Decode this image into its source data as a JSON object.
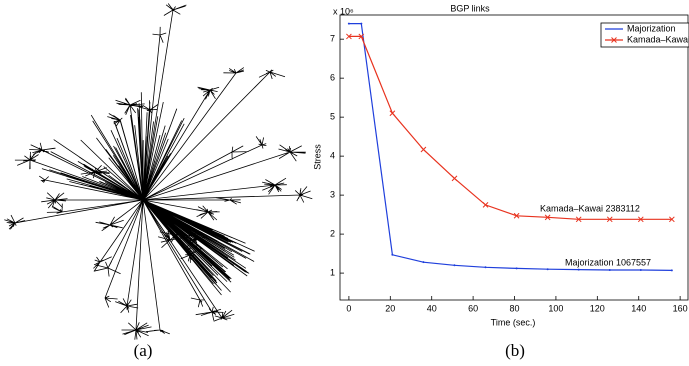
{
  "captions": [
    "(a)",
    "(b)"
  ],
  "chart_data": {
    "type": "line",
    "title": "BGP links",
    "y_multiplier": "x 10⁶",
    "xlabel": "Time (sec.)",
    "ylabel": "Stress",
    "x": [
      0,
      6,
      21,
      36,
      51,
      66,
      81,
      96,
      111,
      126,
      141,
      156
    ],
    "series": [
      {
        "name": "Majorization",
        "color": "#1f3fdc",
        "marker": "dot",
        "values": [
          7.4,
          7.4,
          1.47,
          1.28,
          1.2,
          1.15,
          1.12,
          1.1,
          1.09,
          1.08,
          1.08,
          1.07
        ]
      },
      {
        "name": "Kamada–Kawai",
        "color": "#e8321e",
        "marker": "x",
        "values": [
          7.07,
          7.07,
          5.1,
          4.17,
          3.43,
          2.75,
          2.47,
          2.43,
          2.38,
          2.38,
          2.38,
          2.38
        ]
      }
    ],
    "annotations": [
      "Kamada–Kawai 2383112",
      "Majorization 1067557"
    ],
    "xlim": [
      -4.3,
      163.8
    ],
    "ylim": [
      0.31,
      7.62
    ],
    "xticks": [
      0,
      20,
      40,
      60,
      80,
      100,
      120,
      140,
      160
    ],
    "yticks": [
      1,
      2,
      3,
      4,
      5,
      6,
      7
    ],
    "legend": "northeast"
  }
}
